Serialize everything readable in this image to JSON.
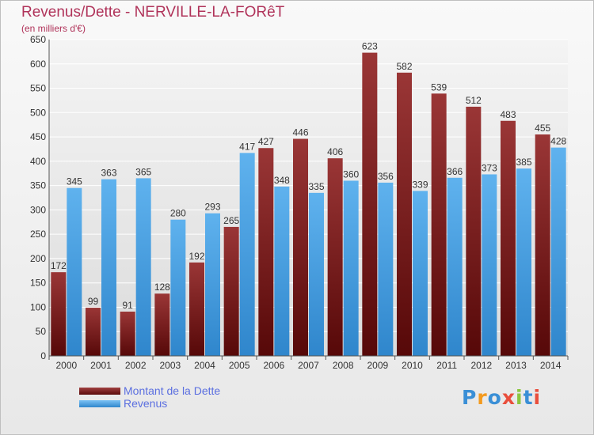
{
  "header": {
    "title": "Revenus/Dette - NERVILLE-LA-FORêT",
    "subtitle": "(en milliers d'€)"
  },
  "legend": {
    "debt_label": "Montant de la Dette",
    "revenue_label": "Revenus"
  },
  "logo": {
    "text": "Proxiti"
  },
  "colors": {
    "debt": "#7a1c1c",
    "revenue": "#4aa3e6",
    "title": "#b0335a",
    "legend_text": "#5b6fe0"
  },
  "chart_data": {
    "type": "bar",
    "title": "Revenus/Dette - NERVILLE-LA-FORêT",
    "subtitle": "(en milliers d'€)",
    "categories": [
      "2000",
      "2001",
      "2002",
      "2003",
      "2004",
      "2005",
      "2006",
      "2007",
      "2008",
      "2009",
      "2010",
      "2011",
      "2012",
      "2013",
      "2014"
    ],
    "series": [
      {
        "name": "Montant de la Dette",
        "color": "#7a1c1c",
        "values": [
          172,
          99,
          91,
          128,
          192,
          265,
          427,
          446,
          406,
          623,
          582,
          539,
          512,
          483,
          455
        ]
      },
      {
        "name": "Revenus",
        "color": "#4aa3e6",
        "values": [
          345,
          363,
          365,
          280,
          293,
          417,
          348,
          335,
          360,
          356,
          339,
          366,
          373,
          385,
          428
        ]
      }
    ],
    "ylim": [
      0,
      650
    ],
    "yticks": [
      0,
      50,
      100,
      150,
      200,
      250,
      300,
      350,
      400,
      450,
      500,
      550,
      600,
      650
    ],
    "grid": true,
    "legend_position": "bottom-left"
  }
}
